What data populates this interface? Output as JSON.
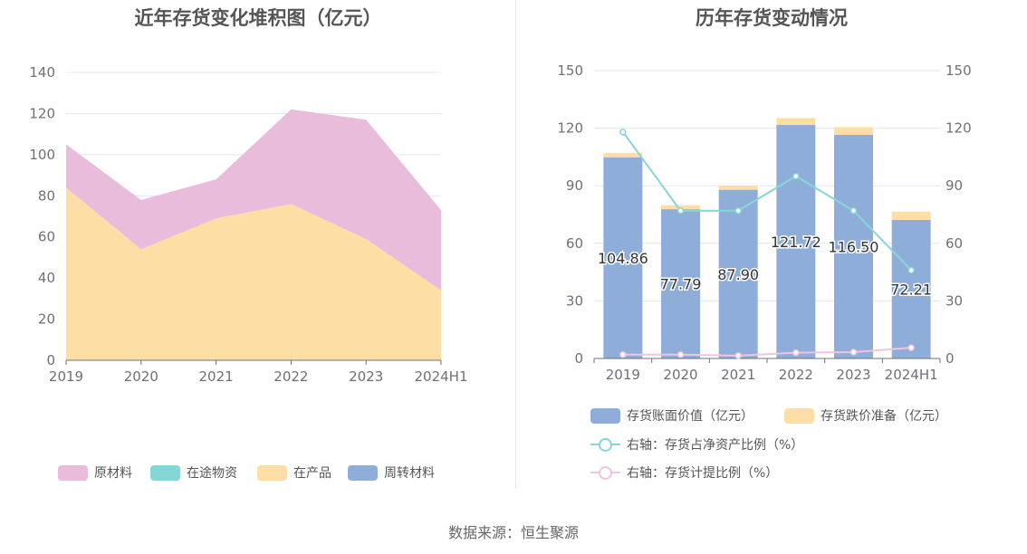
{
  "chart_data": [
    {
      "type": "area",
      "stacked": true,
      "title": "近年存货变化堆积图（亿元）",
      "categories": [
        "2019",
        "2020",
        "2021",
        "2022",
        "2023",
        "2024H1"
      ],
      "ylim": [
        0,
        140
      ],
      "yticks": [
        "0",
        "20",
        "40",
        "60",
        "80",
        "100",
        "120",
        "140"
      ],
      "grid": true,
      "legend_position": "bottom",
      "series": [
        {
          "name": "原材料",
          "color": "#e9bcdc",
          "values": [
            21,
            24,
            19,
            46,
            58,
            39
          ]
        },
        {
          "name": "在途物资",
          "color": "#86d6d8",
          "values": [
            0,
            0,
            0,
            0,
            0,
            0
          ]
        },
        {
          "name": "在产品",
          "color": "#fddfa5",
          "values": [
            84,
            54,
            69,
            76,
            59,
            34
          ]
        },
        {
          "name": "周转材料",
          "color": "#8eaed9",
          "values": [
            0,
            0,
            0,
            0,
            0,
            0
          ]
        }
      ]
    },
    {
      "type": "bar",
      "stacked": true,
      "title": "历年存货变动情况",
      "categories": [
        "2019",
        "2020",
        "2021",
        "2022",
        "2023",
        "2024H1"
      ],
      "ylim": [
        0,
        150
      ],
      "yticks": [
        "0",
        "30",
        "60",
        "90",
        "120",
        "150"
      ],
      "y2lim": [
        0,
        150
      ],
      "y2ticks": [
        "0",
        "30",
        "60",
        "90",
        "120",
        "150"
      ],
      "grid": true,
      "legend_position": "bottom",
      "series": [
        {
          "name": "存货账面价值（亿元）",
          "kind": "bar",
          "color": "#8eaed9",
          "values": [
            104.86,
            77.79,
            87.9,
            121.72,
            116.5,
            72.21
          ],
          "labels": [
            "104.86",
            "77.79",
            "87.90",
            "121.72",
            "116.50",
            "72.21"
          ]
        },
        {
          "name": "存货跌价准备（亿元）",
          "kind": "bar",
          "color": "#fddfa5",
          "values": [
            2.3,
            2.1,
            2.2,
            3.6,
            4.0,
            4.3
          ]
        },
        {
          "name": "右轴：存货占净资产比例（%）",
          "kind": "line",
          "axis": "right",
          "color": "#86d6d8",
          "values": [
            118,
            77,
            77,
            95,
            77,
            46
          ]
        },
        {
          "name": "右轴：存货计提比例（%）",
          "kind": "line",
          "axis": "right",
          "color": "#f0c4df",
          "values": [
            2,
            2,
            1.5,
            3,
            3.3,
            5.6
          ]
        }
      ]
    }
  ],
  "source": "数据来源：恒生聚源"
}
